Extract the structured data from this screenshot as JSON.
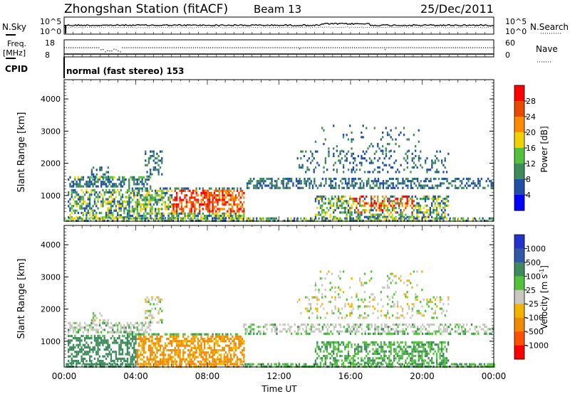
{
  "header": {
    "station": "Zhongshan Station (fitACF)",
    "beam": "Beam 13",
    "date": "25/Dec/2011"
  },
  "top_panels": {
    "nsky_label": "N.Sky",
    "nsearch_label": "N.Search",
    "nsky_ticks": [
      "10^5",
      "10^0"
    ],
    "nsearch_ticks": [
      "10^5",
      "10^0"
    ],
    "freq_label": "Freq.",
    "freq_unit": "[MHz]",
    "freq_ticks": [
      "18",
      "8"
    ],
    "nave_label": "Nave",
    "nave_ticks": [
      "60",
      "0"
    ],
    "cpid_label": "CPID",
    "cpid_text": "normal (fast stereo) 153"
  },
  "chart_data": [
    {
      "type": "heatmap",
      "name": "power",
      "ylabel": "Slant Range [km]",
      "xlabel": "",
      "y_ticks": [
        "1000",
        "2000",
        "3000",
        "4000"
      ],
      "ylim": [
        200,
        4600
      ],
      "colorbar_label": "Power [dB]",
      "colorbar_ticks": [
        "4",
        "8",
        "12",
        "16",
        "20",
        "24",
        "28"
      ],
      "colors": [
        "#0000ff",
        "#1f4fa6",
        "#3d8b5a",
        "#52c23d",
        "#f2d100",
        "#ff8c00",
        "#e84a00",
        "#ff0000"
      ]
    },
    {
      "type": "heatmap",
      "name": "velocity",
      "ylabel": "Slant Range [km]",
      "xlabel": "Time UT",
      "x_ticks": [
        "00:00",
        "04:00",
        "08:00",
        "12:00",
        "16:00",
        "20:00",
        "00:00"
      ],
      "y_ticks": [
        "1000",
        "2000",
        "3000",
        "4000"
      ],
      "ylim": [
        200,
        4600
      ],
      "colorbar_label": "Velocity [m s",
      "colorbar_label_sup": "-1",
      "colorbar_label_tail": "]",
      "colorbar_ticks": [
        "1000",
        "500",
        "100",
        "25",
        "-25",
        "-100",
        "-500",
        "-1000"
      ],
      "colors": [
        "#2233cc",
        "#2f58a8",
        "#3d8b5a",
        "#52c23d",
        "#c8c8c0",
        "#f2b400",
        "#f08a00",
        "#ff5000",
        "#ff0000"
      ]
    }
  ]
}
